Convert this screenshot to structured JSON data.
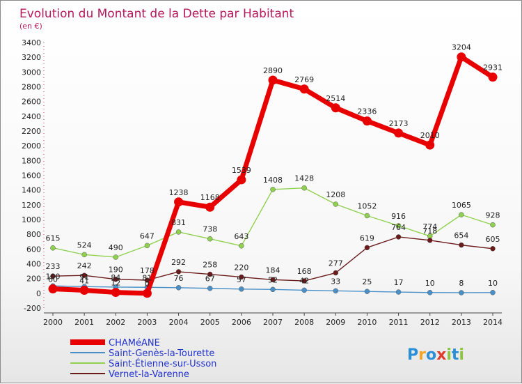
{
  "title": "Evolution du Montant de la Dette par Habitant",
  "unit": "(en €)",
  "logo": {
    "letters": [
      "P",
      "r",
      "o",
      "x",
      "i",
      "t",
      "i"
    ],
    "colors": [
      "#2a8fd6",
      "#f5a623",
      "#2a8fd6",
      "#e23b2e",
      "#8cc63f",
      "#2a8fd6",
      "#8cc63f"
    ]
  },
  "chart_data": {
    "type": "line",
    "x": [
      "2000",
      "2001",
      "2002",
      "2003",
      "2004",
      "2005",
      "2006",
      "2007",
      "2008",
      "2009",
      "2010",
      "2011",
      "2012",
      "2013",
      "2014"
    ],
    "ylim": [
      -200,
      3400
    ],
    "yticks": [
      -200,
      0,
      200,
      400,
      600,
      800,
      1000,
      1200,
      1400,
      1600,
      1800,
      2000,
      2200,
      2400,
      2600,
      2800,
      3000,
      3200,
      3400
    ],
    "grid": false,
    "legend_position": "bottom-left",
    "series": [
      {
        "name": "CHAMéANE",
        "color": "#e80000",
        "values": [
          60,
          41,
          12,
          0,
          1238,
          1168,
          1539,
          2890,
          2769,
          2514,
          2336,
          2173,
          2010,
          3204,
          2931
        ],
        "labels": [
          "60",
          "41",
          "12",
          "0",
          "1238",
          "1168",
          "1539",
          "2890",
          "2769",
          "2514",
          "2336",
          "2173",
          "2010",
          "3204",
          "2931"
        ]
      },
      {
        "name": "Saint-Genès-la-Tourette",
        "color": "#4a90c8",
        "values": [
          100,
          91,
          84,
          81,
          76,
          67,
          57,
          52,
          42,
          33,
          25,
          17,
          10,
          8,
          10
        ],
        "labels": [
          "100",
          "91",
          "84",
          "81",
          "76",
          "67",
          "57",
          "52",
          "42",
          "33",
          "25",
          "17",
          "10",
          "8",
          "10"
        ]
      },
      {
        "name": "Saint-Étienne-sur-Usson",
        "color": "#8fd14f",
        "values": [
          615,
          524,
          490,
          647,
          831,
          738,
          643,
          1408,
          1428,
          1208,
          1052,
          916,
          774,
          1065,
          928
        ],
        "labels": [
          "615",
          "524",
          "490",
          "647",
          "831",
          "738",
          "643",
          "1408",
          "1428",
          "1208",
          "1052",
          "916",
          "774",
          "1065",
          "928"
        ]
      },
      {
        "name": "Vernet-la-Varenne",
        "color": "#6b1a1a",
        "values": [
          233,
          242,
          190,
          178,
          292,
          258,
          220,
          184,
          168,
          277,
          619,
          764,
          718,
          654,
          605
        ],
        "labels": [
          "233",
          "242",
          "190",
          "178",
          "292",
          "258",
          "220",
          "184",
          "168",
          "277",
          "619",
          "764",
          "718",
          "654",
          "605"
        ]
      }
    ]
  }
}
